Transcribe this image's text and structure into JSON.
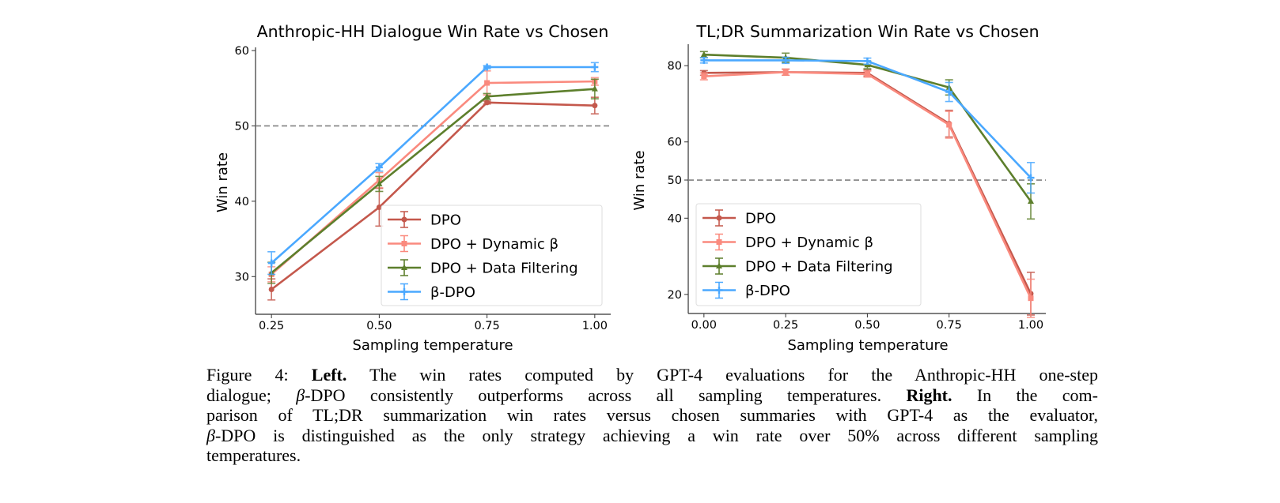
{
  "chart_data": [
    {
      "type": "line",
      "title": "Anthropic-HH Dialogue Win Rate vs Chosen",
      "xlabel": "Sampling temperature",
      "ylabel": "Win rate",
      "x": [
        0.25,
        0.5,
        0.75,
        1.0
      ],
      "xticks": [
        "0.25",
        "0.50",
        "0.75",
        "1.00"
      ],
      "xtick_values": [
        0.25,
        0.5,
        0.75,
        1.0
      ],
      "yticks": [
        "30",
        "40",
        "50",
        "60"
      ],
      "ytick_values": [
        30,
        40,
        50,
        60
      ],
      "xlim": [
        0.213,
        1.037
      ],
      "ylim": [
        25,
        60
      ],
      "reference_line": {
        "y": 50,
        "style": "dashed",
        "color": "#808080"
      },
      "grid": false,
      "legend_placement": "lower-right",
      "series": [
        {
          "name": "DPO",
          "color": "#c4584c",
          "marker": "circle",
          "values": [
            28.3,
            39.2,
            53.1,
            52.7
          ],
          "errors": [
            1.4,
            2.5,
            0.2,
            1.1
          ]
        },
        {
          "name": "DPO + Dynamic β",
          "color": "#fa8a7e",
          "marker": "square",
          "values": [
            30.3,
            42.8,
            55.7,
            55.9
          ],
          "errors": [
            1.0,
            1.0,
            1.6,
            0.5
          ]
        },
        {
          "name": "DPO + Data Filtering",
          "color": "#5d7f2c",
          "marker": "triangle",
          "values": [
            30.5,
            42.3,
            53.9,
            54.9
          ],
          "errors": [
            1.4,
            1.0,
            0.4,
            1.3
          ]
        },
        {
          "name": "β-DPO",
          "color": "#4aa8ff",
          "marker": "plus",
          "values": [
            31.8,
            44.5,
            57.8,
            57.8
          ],
          "errors": [
            1.5,
            0.5,
            0.2,
            0.6
          ]
        }
      ]
    },
    {
      "type": "line",
      "title": "TL;DR Summarization Win Rate vs Chosen",
      "xlabel": "Sampling temperature",
      "ylabel": "Win rate",
      "x": [
        0.0,
        0.25,
        0.5,
        0.75,
        1.0
      ],
      "xticks": [
        "0.00",
        "0.25",
        "0.50",
        "0.75",
        "1.00"
      ],
      "xtick_values": [
        0,
        0.25,
        0.5,
        0.75,
        1.0
      ],
      "yticks": [
        "20",
        "40",
        "50",
        "60",
        "80"
      ],
      "ytick_values": [
        20,
        40,
        50,
        60,
        80
      ],
      "xlim": [
        -0.048,
        1.046
      ],
      "ylim": [
        15,
        84.8
      ],
      "reference_line": {
        "y": 50,
        "style": "dashed",
        "color": "#808080"
      },
      "grid": false,
      "legend_placement": "lower-left",
      "series": [
        {
          "name": "DPO",
          "color": "#c4584c",
          "marker": "circle",
          "values": [
            78.1,
            78.3,
            78.1,
            64.8,
            20.2
          ],
          "errors": [
            0.6,
            0.8,
            0.8,
            3.5,
            5.6
          ]
        },
        {
          "name": "DPO + Dynamic β",
          "color": "#fa8a7e",
          "marker": "square",
          "values": [
            77.2,
            78.3,
            77.8,
            64.5,
            19.0
          ],
          "errors": [
            0.9,
            0.8,
            0.8,
            3.5,
            5.0
          ]
        },
        {
          "name": "DPO + Data Filtering",
          "color": "#5d7f2c",
          "marker": "triangle",
          "values": [
            82.9,
            82.1,
            80.2,
            74.3,
            44.4
          ],
          "errors": [
            0.8,
            1.2,
            1.0,
            2.0,
            4.6
          ]
        },
        {
          "name": "β-DPO",
          "color": "#4aa8ff",
          "marker": "plus",
          "values": [
            81.4,
            81.4,
            81.2,
            73.1,
            50.6
          ],
          "errors": [
            0.7,
            0.8,
            0.8,
            2.5,
            4.0
          ]
        }
      ]
    }
  ],
  "caption": {
    "lines": [
      [
        {
          "text": "Figure 4: ",
          "style": ""
        },
        {
          "text": "Left.",
          "style": "b"
        },
        {
          "text": " The win rates computed by GPT-4 evaluations for the Anthropic-HH one-step",
          "style": ""
        }
      ],
      [
        {
          "text": "dialogue; ",
          "style": ""
        },
        {
          "text": "β",
          "style": "i"
        },
        {
          "text": "-DPO consistently outperforms across all sampling temperatures. ",
          "style": ""
        },
        {
          "text": "Right.",
          "style": "b"
        },
        {
          "text": " In the com-",
          "style": ""
        }
      ],
      [
        {
          "text": "parison of TL;DR summarization win rates versus chosen summaries with GPT-4 as the evaluator,",
          "style": ""
        }
      ],
      [
        {
          "text": "β",
          "style": "i"
        },
        {
          "text": "-DPO is distinguished as the only strategy achieving a win rate over 50% across different sampling",
          "style": ""
        }
      ],
      [
        {
          "text": "temperatures.",
          "style": ""
        }
      ]
    ]
  }
}
